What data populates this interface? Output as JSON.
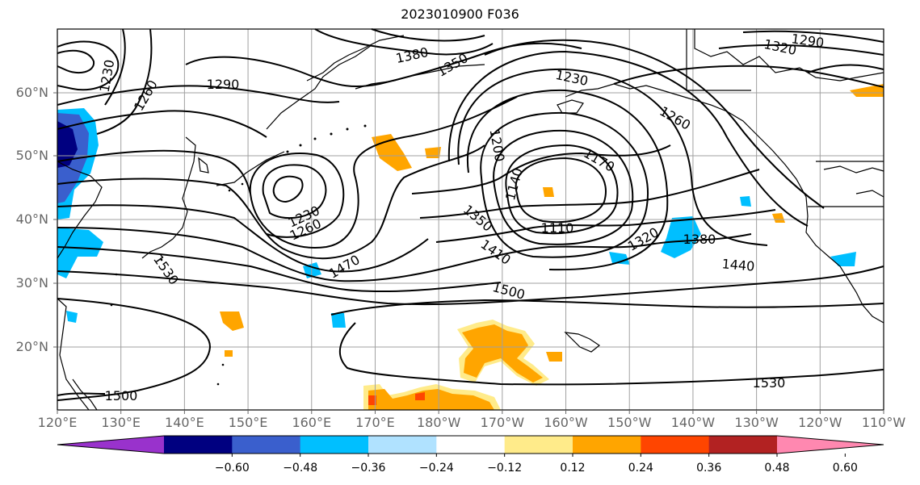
{
  "title": "2023010900 F036",
  "lat_labels": [
    "60°N",
    "50°N",
    "40°N",
    "30°N",
    "20°N"
  ],
  "lon_labels": [
    "120°E",
    "130°E",
    "140°E",
    "150°E",
    "160°E",
    "170°E",
    "180°W",
    "170°W",
    "160°W",
    "150°W",
    "140°W",
    "130°W",
    "120°W",
    "110°W"
  ],
  "contour_labels": [
    "1380",
    "1320",
    "1290",
    "1230",
    "1260",
    "1290",
    "1350",
    "1230",
    "1260",
    "1200",
    "1170",
    "1140",
    "1230",
    "1260",
    "1110",
    "1350",
    "1410",
    "1320",
    "1380",
    "1440",
    "1470",
    "1530",
    "1500",
    "1530",
    "1500"
  ],
  "colorbar": {
    "ticks": [
      "−0.60",
      "−0.48",
      "−0.36",
      "−0.24",
      "−0.12",
      "0.12",
      "0.24",
      "0.36",
      "0.48",
      "0.60"
    ],
    "colors": [
      "#9932cc",
      "#000080",
      "#3a5fcd",
      "#00bfff",
      "#b0e2ff",
      "#ffffff",
      "#ffeb8a",
      "#ffa500",
      "#ff4500",
      "#b22222",
      "#ff88b0"
    ]
  }
}
